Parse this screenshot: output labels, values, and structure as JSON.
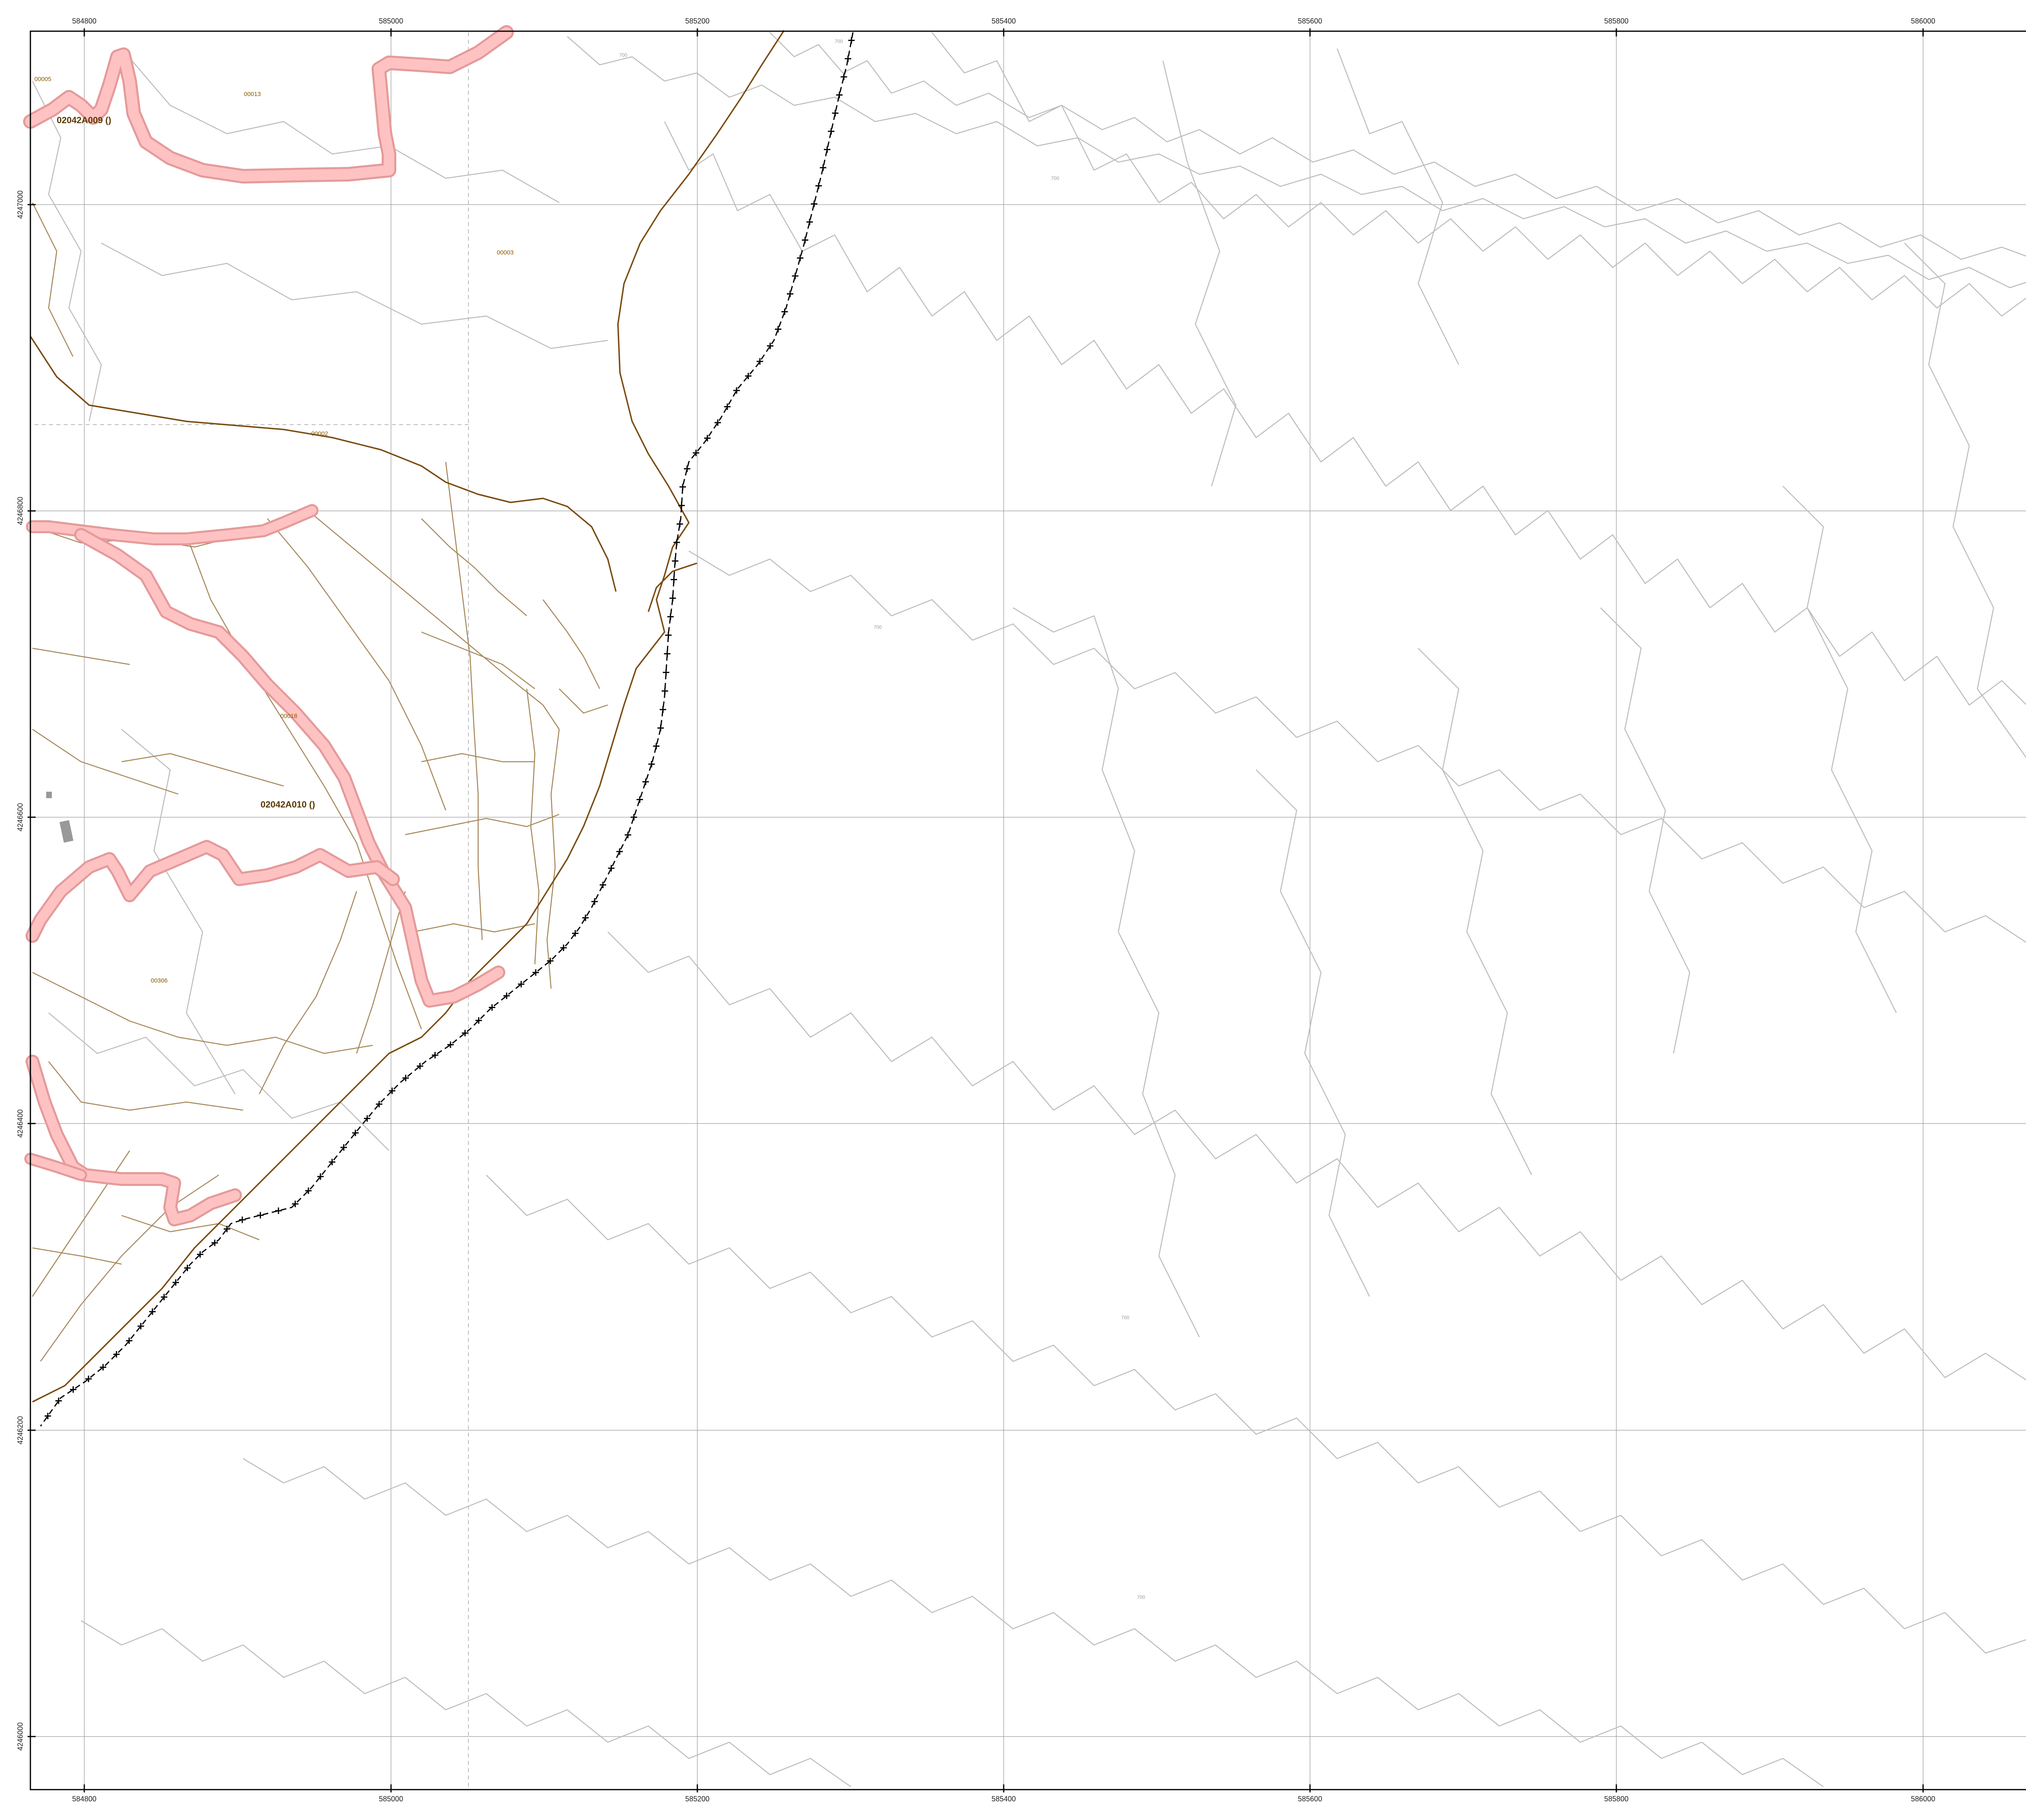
{
  "map": {
    "x_ticks": [
      "584800",
      "585000",
      "585200",
      "585400",
      "585600",
      "585800",
      "586000"
    ],
    "y_ticks": [
      "4247000",
      "4246800",
      "4246600",
      "4246400",
      "4246200",
      "4246000"
    ],
    "polygon_labels": [
      "02042A009 ()",
      "02042A010 ()"
    ],
    "parcel_labels": [
      "00005",
      "00013",
      "00003",
      "00002",
      "00018",
      "00306"
    ],
    "contour_labels": [
      "700",
      "700",
      "700",
      "700",
      "700",
      "700"
    ],
    "colors": {
      "frame": "#000000",
      "grid": "#a8a8a8",
      "contour": "#bdbdbd",
      "parcel": "#a6885a",
      "boundary": "#7a4a10",
      "road_fill": "#ffc2c2",
      "road_edge": "#e59a9a",
      "track": "#000000",
      "building": "#999999"
    }
  }
}
